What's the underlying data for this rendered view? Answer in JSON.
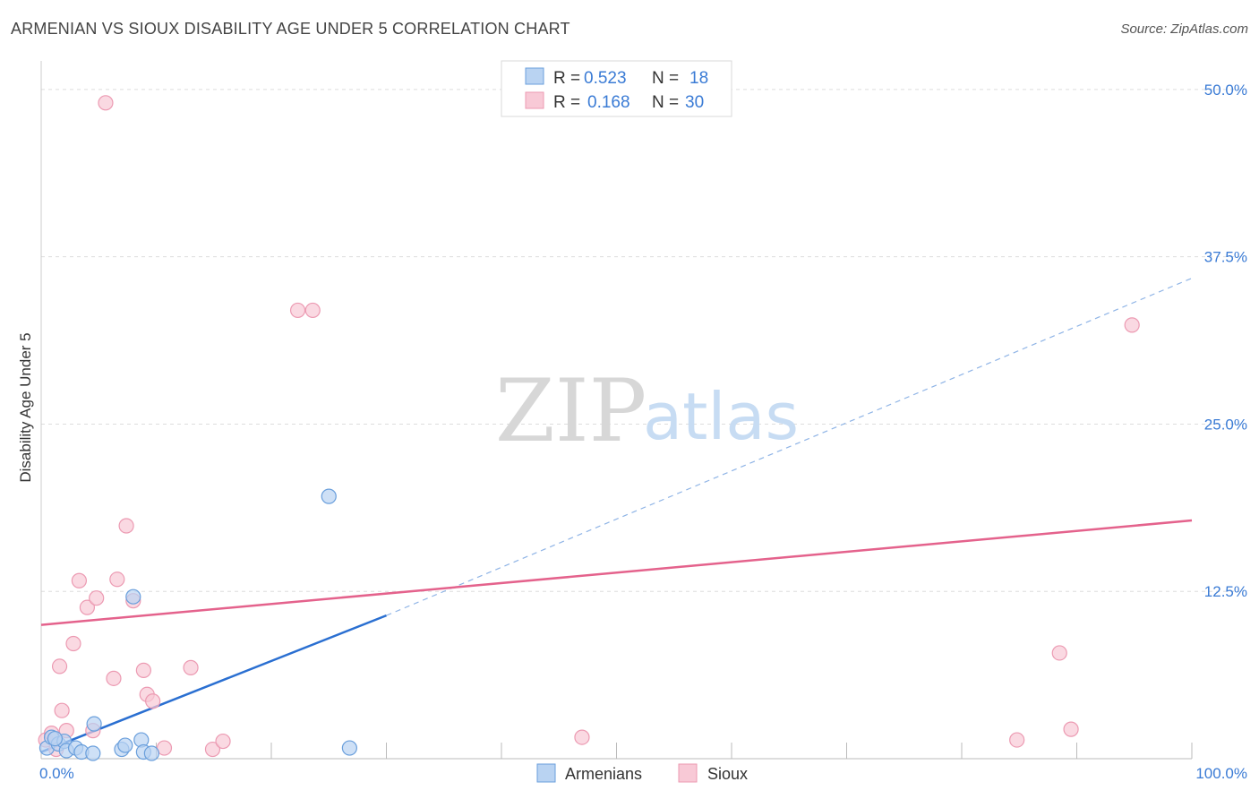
{
  "title": "ARMENIAN VS SIOUX DISABILITY AGE UNDER 5 CORRELATION CHART",
  "source": "Source: ZipAtlas.com",
  "watermark": {
    "zip": "ZIP",
    "atlas": "atlas"
  },
  "legend": {
    "armenians": {
      "r_label": "R =",
      "r_value": "0.523",
      "n_label": "N =",
      "n_value": "18"
    },
    "sioux": {
      "r_label": "R =",
      "r_value": "0.168",
      "n_label": "N =",
      "n_value": "30"
    }
  },
  "colors": {
    "armenians_fill": "#b9d3f2",
    "armenians_stroke": "#6a9fdc",
    "armenians_line": "#2a6fd1",
    "sioux_fill": "#f8c9d6",
    "sioux_stroke": "#ec9ab2",
    "sioux_line": "#e4628c",
    "grid": "#dddddd",
    "tick_text": "#3a7bd5"
  },
  "chart_data": {
    "type": "scatter",
    "title": "ARMENIAN VS SIOUX DISABILITY AGE UNDER 5 CORRELATION CHART",
    "xlabel": "",
    "ylabel": "Disability Age Under 5",
    "xlim": [
      0,
      100
    ],
    "ylim": [
      0,
      52
    ],
    "x_tick_labels": [
      "0.0%",
      "100.0%"
    ],
    "y_ticks": [
      12.5,
      25.0,
      37.5,
      50.0
    ],
    "y_tick_labels": [
      "12.5%",
      "25.0%",
      "37.5%",
      "50.0%"
    ],
    "series": [
      {
        "name": "Armenians",
        "points": [
          [
            0.5,
            0.8
          ],
          [
            0.9,
            1.6
          ],
          [
            1.5,
            1.1
          ],
          [
            2.0,
            1.3
          ],
          [
            2.2,
            0.6
          ],
          [
            3.0,
            0.8
          ],
          [
            3.5,
            0.5
          ],
          [
            4.5,
            0.4
          ],
          [
            4.6,
            2.6
          ],
          [
            7.0,
            0.7
          ],
          [
            7.3,
            1.0
          ],
          [
            8.0,
            12.1
          ],
          [
            8.7,
            1.4
          ],
          [
            8.9,
            0.5
          ],
          [
            9.6,
            0.4
          ],
          [
            25.0,
            19.6
          ],
          [
            26.8,
            0.8
          ],
          [
            1.2,
            1.5
          ]
        ],
        "trend": {
          "x0": 0,
          "y0": 0.5,
          "x1": 30,
          "y1": 10.7,
          "dashed_x1": 100,
          "dashed_y1": 35.9
        }
      },
      {
        "name": "Sioux",
        "points": [
          [
            0.4,
            1.4
          ],
          [
            0.9,
            1.9
          ],
          [
            1.3,
            0.7
          ],
          [
            1.6,
            6.9
          ],
          [
            1.8,
            3.6
          ],
          [
            2.2,
            2.1
          ],
          [
            2.8,
            8.6
          ],
          [
            3.3,
            13.3
          ],
          [
            4.0,
            11.3
          ],
          [
            4.5,
            2.1
          ],
          [
            4.8,
            12.0
          ],
          [
            5.6,
            49.0
          ],
          [
            6.3,
            6.0
          ],
          [
            6.6,
            13.4
          ],
          [
            7.4,
            17.4
          ],
          [
            8.0,
            11.8
          ],
          [
            8.9,
            6.6
          ],
          [
            9.2,
            4.8
          ],
          [
            9.7,
            4.3
          ],
          [
            10.7,
            0.8
          ],
          [
            13.0,
            6.8
          ],
          [
            14.9,
            0.7
          ],
          [
            15.8,
            1.3
          ],
          [
            22.3,
            33.5
          ],
          [
            23.6,
            33.5
          ],
          [
            47.0,
            1.6
          ],
          [
            84.8,
            1.4
          ],
          [
            88.5,
            7.9
          ],
          [
            89.5,
            2.2
          ],
          [
            94.8,
            32.4
          ]
        ],
        "trend": {
          "x0": 0,
          "y0": 10.0,
          "x1": 100,
          "y1": 17.8
        }
      }
    ],
    "legend_position": "top-center",
    "bottom_legend": [
      "Armenians",
      "Sioux"
    ]
  }
}
